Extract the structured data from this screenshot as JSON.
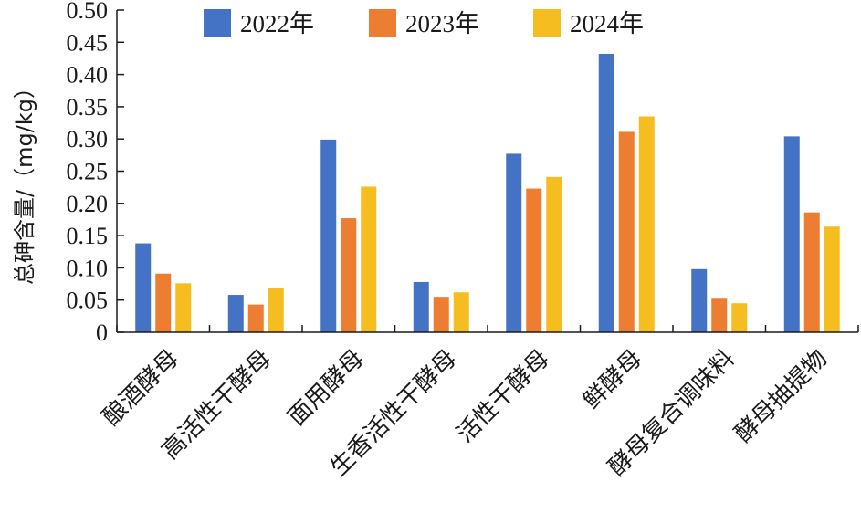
{
  "chart_data": {
    "type": "bar",
    "title": "",
    "xlabel": "",
    "ylabel": "总砷含量/（mg/kg）",
    "ylim": [
      0,
      0.5
    ],
    "yticks": [
      "0",
      "0.05",
      "0.10",
      "0.15",
      "0.20",
      "0.25",
      "0.30",
      "0.35",
      "0.40",
      "0.45",
      "0.50"
    ],
    "grid": false,
    "legend_position": "top",
    "categories": [
      "酿酒酵母",
      "高活性干酵母",
      "面用酵母",
      "生香活性干酵母",
      "活性干酵母",
      "鲜酵母",
      "酵母复合调味料",
      "酵母抽提物"
    ],
    "series": [
      {
        "name": "2022年",
        "color": "#4472C4",
        "values": [
          0.138,
          0.058,
          0.299,
          0.078,
          0.277,
          0.432,
          0.098,
          0.304
        ]
      },
      {
        "name": "2023年",
        "color": "#ED7D31",
        "values": [
          0.091,
          0.043,
          0.177,
          0.055,
          0.223,
          0.311,
          0.052,
          0.186
        ]
      },
      {
        "name": "2024年",
        "color": "#F5BD1F",
        "values": [
          0.076,
          0.068,
          0.226,
          0.062,
          0.241,
          0.335,
          0.045,
          0.164
        ]
      }
    ]
  }
}
